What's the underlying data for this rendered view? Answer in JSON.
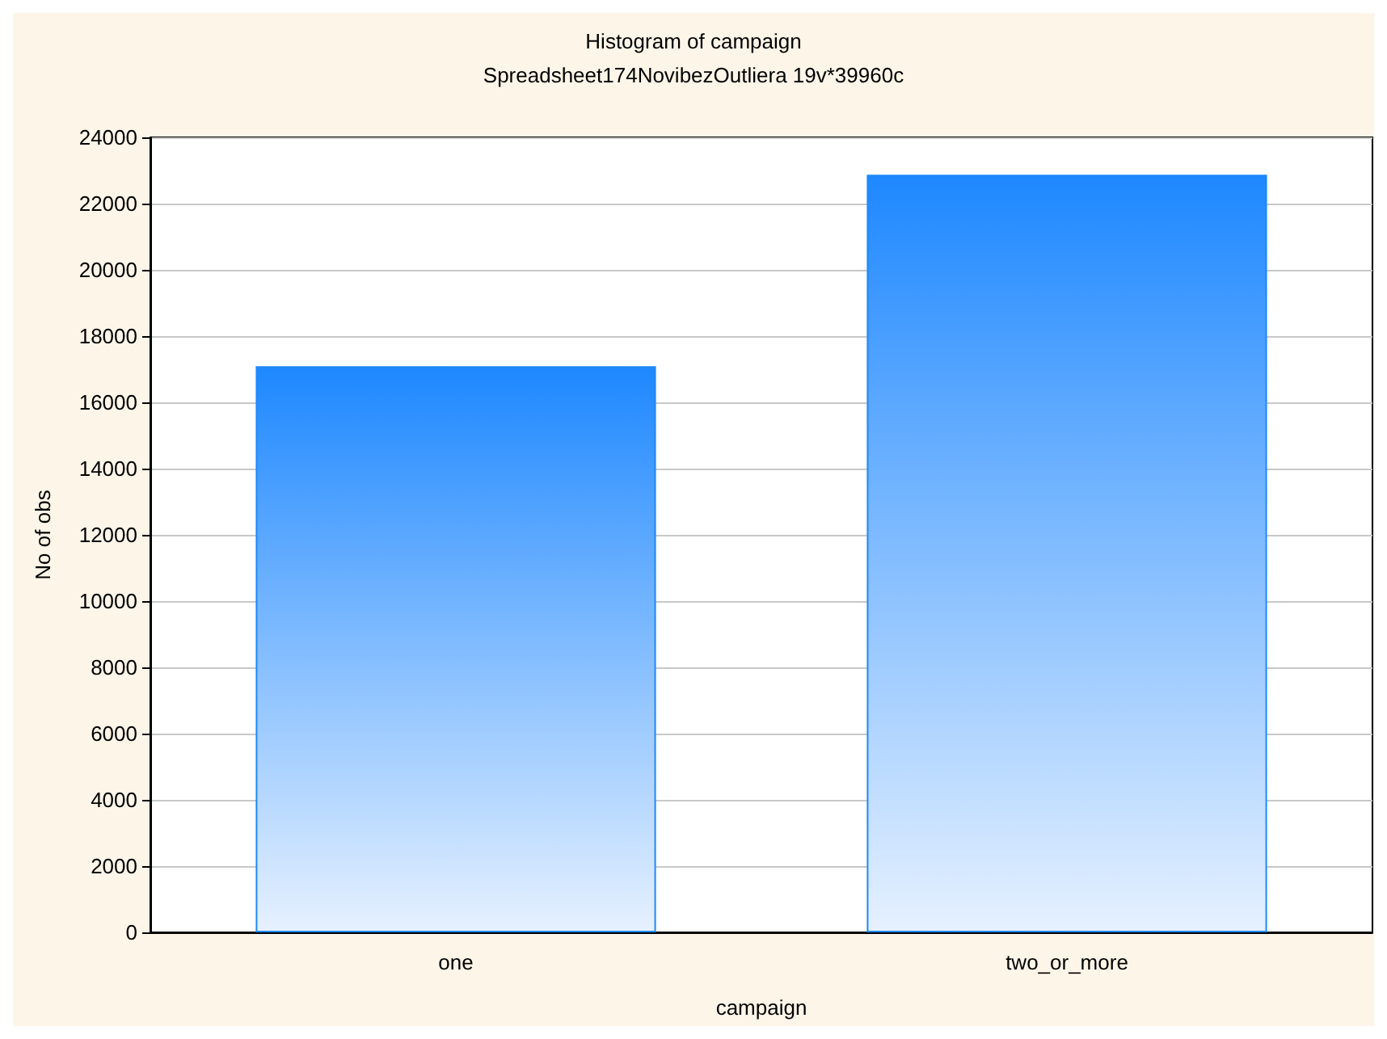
{
  "chart_data": {
    "type": "bar",
    "title": "Histogram of campaign",
    "subtitle": "Spreadsheet174NovibezOutliera 19v*39960c",
    "xlabel": "campaign",
    "ylabel": "No of obs",
    "categories": [
      "one",
      "two_or_more"
    ],
    "values": [
      17090,
      22870
    ],
    "color": "#1e88ff",
    "ylim": [
      0,
      24000
    ],
    "yticks": [
      0,
      2000,
      4000,
      6000,
      8000,
      10000,
      12000,
      14000,
      16000,
      18000,
      20000,
      22000,
      24000
    ],
    "grid": "y"
  }
}
